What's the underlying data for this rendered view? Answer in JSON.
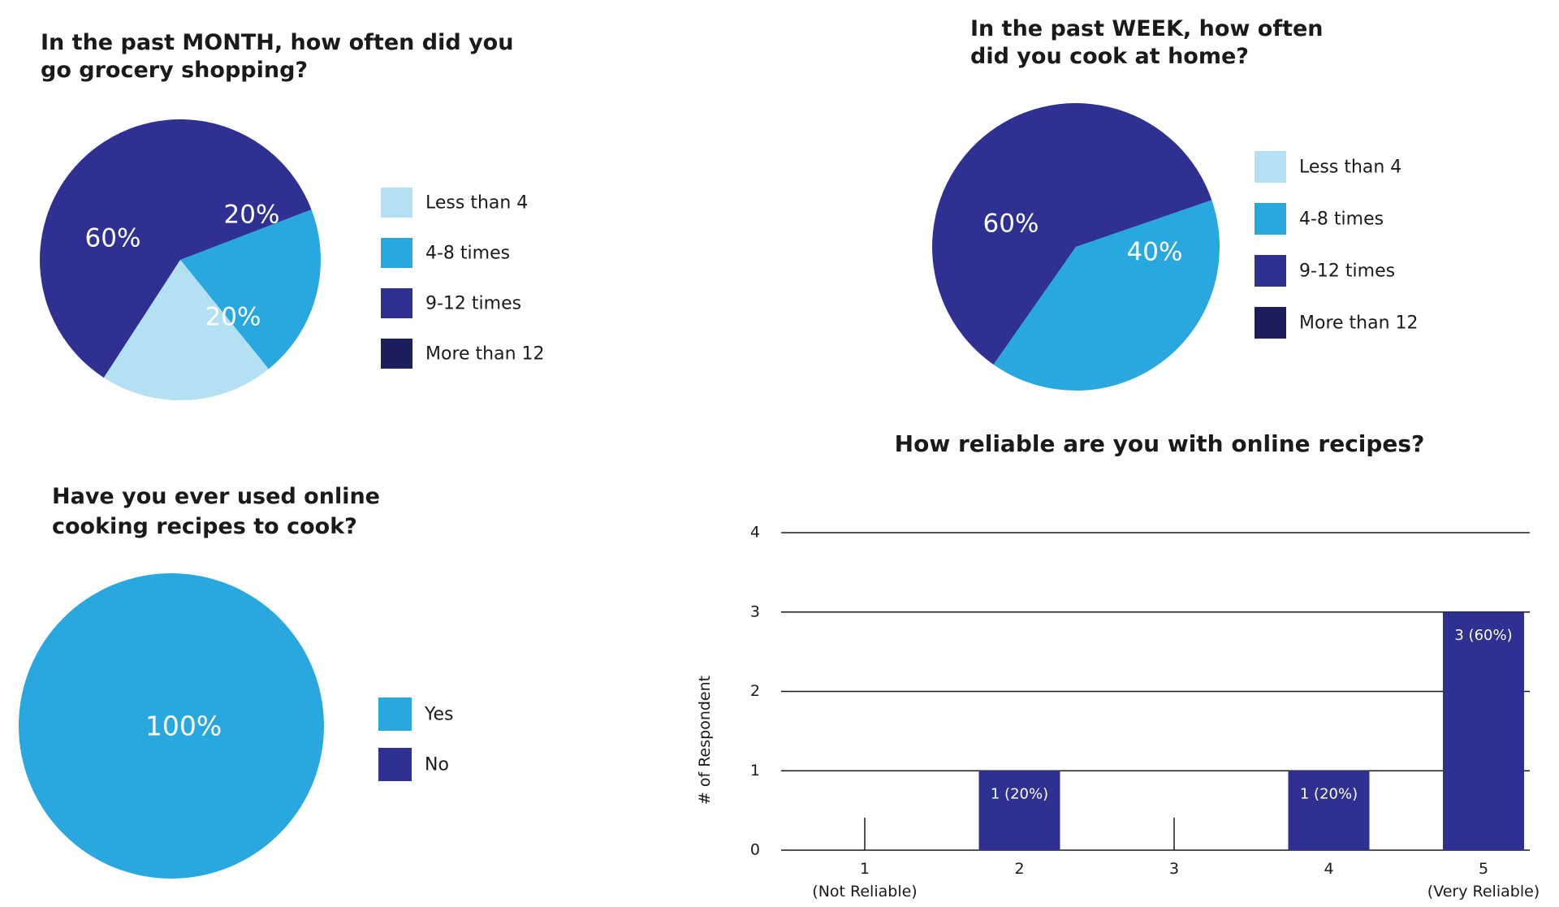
{
  "colors": {
    "less_than_4": "#b3e0f2",
    "four_to_8": "#29a8e0",
    "nine_to_12": "#2e3192",
    "more_than_12": "#1c1f5e",
    "yes": "#29a8e0",
    "no": "#2e3192",
    "bar": "#2e3192",
    "text": "#1a1a1a"
  },
  "chart_data": [
    {
      "type": "pie",
      "title": "In the past MONTH, how often did you go grocery shopping?",
      "title_lines": [
        "In the past MONTH, how often did you",
        "go grocery shopping?"
      ],
      "legend": [
        "Less than 4",
        "4-8 times",
        "9-12 times",
        "More than 12"
      ],
      "slices": [
        {
          "label": "4-8 times",
          "value": 20,
          "text": "20%"
        },
        {
          "label": "Less than 4",
          "value": 20,
          "text": "20%"
        },
        {
          "label": "9-12 times",
          "value": 60,
          "text": "60%"
        }
      ]
    },
    {
      "type": "pie",
      "title": "In the past WEEK, how often did you cook at home?",
      "title_lines": [
        "In the past WEEK, how often",
        "did you cook at home?"
      ],
      "legend": [
        "Less than 4",
        "4-8 times",
        "9-12 times",
        "More than 12"
      ],
      "slices": [
        {
          "label": "4-8 times",
          "value": 40,
          "text": "40%"
        },
        {
          "label": "9-12 times",
          "value": 60,
          "text": "60%"
        }
      ]
    },
    {
      "type": "pie",
      "title": "Have you ever used online cooking recipes to cook?",
      "title_lines": [
        "Have you ever used online",
        "cooking recipes to cook?"
      ],
      "legend": [
        "Yes",
        "No"
      ],
      "slices": [
        {
          "label": "Yes",
          "value": 100,
          "text": "100%"
        }
      ]
    },
    {
      "type": "bar",
      "title": "How reliable are you with online recipes?",
      "ylabel": "#   of Respondent",
      "ylim": [
        0,
        4
      ],
      "yticks": [
        0,
        1,
        2,
        3,
        4
      ],
      "grid": true,
      "categories": [
        "1",
        "2",
        "3",
        "4",
        "5"
      ],
      "sublabels": [
        "(Not Reliable)",
        "",
        "",
        "",
        "(Very Reliable)"
      ],
      "values": [
        0,
        1,
        0,
        1,
        3
      ],
      "data_labels": [
        "",
        "1 (20%)",
        "",
        "1 (20%)",
        "3 (60%)"
      ]
    }
  ]
}
